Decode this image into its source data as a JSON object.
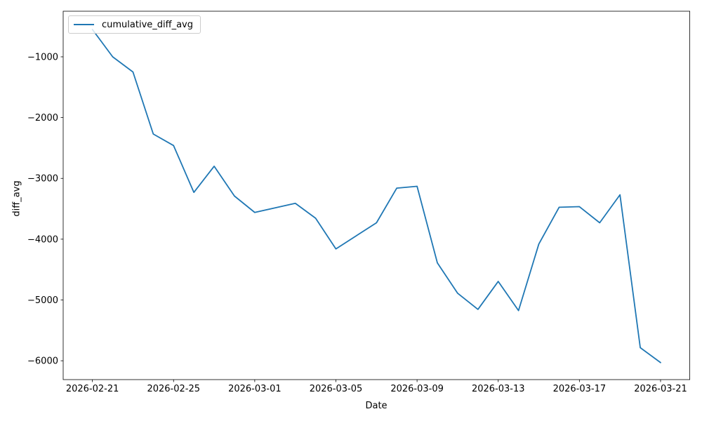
{
  "chart_data": {
    "type": "line",
    "title": "",
    "xlabel": "Date",
    "ylabel": "diff_avg",
    "legend": [
      "cumulative_diff_avg"
    ],
    "legend_position": "upper left",
    "grid": false,
    "line_color": "#1f77b4",
    "x": [
      "2026-02-21",
      "2026-02-22",
      "2026-02-23",
      "2026-02-24",
      "2026-02-25",
      "2026-02-26",
      "2026-02-27",
      "2026-02-28",
      "2026-03-01",
      "2026-03-02",
      "2026-03-03",
      "2026-03-04",
      "2026-03-05",
      "2026-03-06",
      "2026-03-07",
      "2026-03-08",
      "2026-03-09",
      "2026-03-10",
      "2026-03-11",
      "2026-03-12",
      "2026-03-13",
      "2026-03-14",
      "2026-03-15",
      "2026-03-16",
      "2026-03-17",
      "2026-03-18",
      "2026-03-19",
      "2026-03-20",
      "2026-03-21"
    ],
    "series": [
      {
        "name": "cumulative_diff_avg",
        "values": [
          -550,
          -1000,
          -1250,
          -2270,
          -2460,
          -3230,
          -2800,
          -3290,
          -3560,
          -3485,
          -3410,
          -3655,
          -4160,
          -3945,
          -3730,
          -3160,
          -3130,
          -4390,
          -4890,
          -5155,
          -4695,
          -5175,
          -4080,
          -3475,
          -3465,
          -3730,
          -3270,
          -5785,
          -6030
        ]
      }
    ],
    "xlim_days": [
      -1.44,
      29.44
    ],
    "ylim": [
      -6310,
      -250
    ],
    "xticks": {
      "indices": [
        0,
        4,
        8,
        12,
        16,
        20,
        24,
        28
      ],
      "labels": [
        "2026-02-21",
        "2026-02-25",
        "2026-03-01",
        "2026-03-05",
        "2026-03-09",
        "2026-03-13",
        "2026-03-17",
        "2026-03-21"
      ]
    },
    "yticks": {
      "values": [
        -1000,
        -2000,
        -3000,
        -4000,
        -5000,
        -6000
      ],
      "labels": [
        "−1000",
        "−2000",
        "−3000",
        "−4000",
        "−5000",
        "−6000"
      ]
    }
  }
}
